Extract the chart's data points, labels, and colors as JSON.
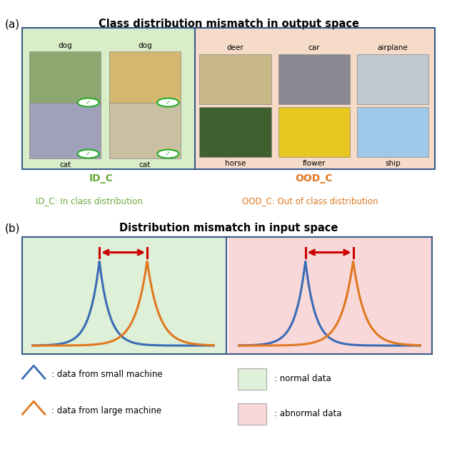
{
  "title_a": "Class distribution mismatch in output space",
  "title_b": "Distribution mismatch in input space",
  "label_IDC": "ID_C",
  "label_OODC": "OOD_C",
  "desc_IDC": "ID_C: In class distribution",
  "desc_OODC": "OOD_C: Out of class distribution",
  "color_IDC": "#6aaa3a",
  "color_OODC": "#e07820",
  "bg_green": "#d8edc8",
  "bg_peach": "#f5dbc8",
  "bg_green_light": "#dff0d8",
  "bg_pink_light": "#f8d8d8",
  "blue_curve": "#3a6bb5",
  "orange_curve": "#e07820",
  "red_arrow": "#cc0000",
  "border_color": "#3a5a8a",
  "legend_items": [
    ": data from small machine",
    ": data from large machine",
    ": normal data",
    ": abnormal data"
  ],
  "panel_a_label": "(a)",
  "panel_b_label": "(b)",
  "id_labels_top": [
    "dog",
    "dog"
  ],
  "id_labels_bot": [
    "cat",
    "cat"
  ],
  "ood_labels_top": [
    "deer",
    "car",
    "airplane"
  ],
  "ood_labels_bot": [
    "horse",
    "flower",
    "ship"
  ],
  "id_colors_top": [
    "#8ca870",
    "#d4b870"
  ],
  "id_colors_bot": [
    "#a0a0b8",
    "#c8c0a0"
  ],
  "ood_colors_top": [
    "#c8b888",
    "#888890",
    "#c0c8d0"
  ],
  "ood_colors_bot": [
    "#406030",
    "#e8c820",
    "#a0c8e8"
  ]
}
